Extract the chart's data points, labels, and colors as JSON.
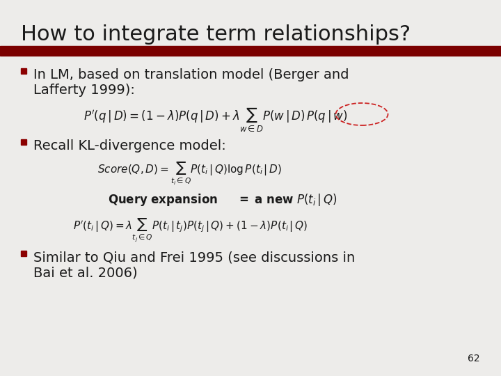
{
  "bg_color": "#EDECEA",
  "title": "How to integrate term relationships?",
  "title_color": "#1a1a1a",
  "title_fontsize": 22,
  "bar_color": "#7B0000",
  "bullet_color": "#8B0000",
  "text_color": "#1a1a1a",
  "bullet_fontsize": 14,
  "formula_fontsize": 11,
  "page_fontsize": 10,
  "bullet1_line1": "In LM, based on translation model (Berger and",
  "bullet1_line2": "Lafferty 1999):",
  "bullet2": "Recall KL-divergence model:",
  "bullet3_line1": "Similar to Qiu and Frei 1995 (see discussions in",
  "bullet3_line2": "Bai et al. 2006)",
  "page_num": "62"
}
